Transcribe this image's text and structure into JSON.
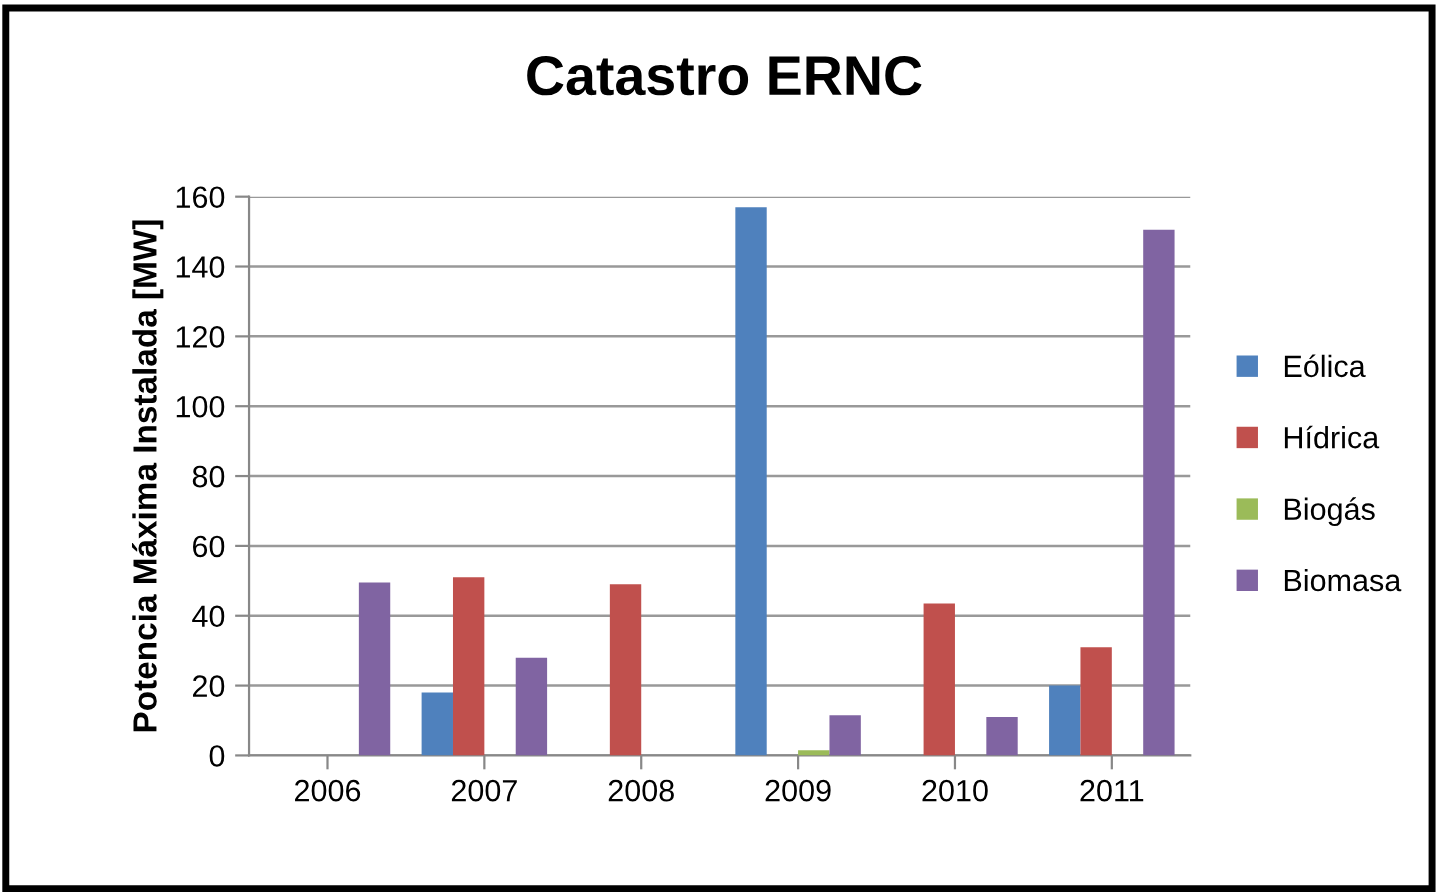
{
  "chart_data": {
    "type": "bar",
    "title": "Catastro ERNC",
    "ylabel": "Potencia Máxima Instalada [MW]",
    "categories": [
      "2006",
      "2007",
      "2008",
      "2009",
      "2010",
      "2011"
    ],
    "series": [
      {
        "name": "Eólica",
        "color": "#4f81bd",
        "values": [
          0,
          18,
          0,
          157,
          0,
          20
        ]
      },
      {
        "name": "Hídrica",
        "color": "#c0504d",
        "values": [
          0,
          51,
          49,
          0,
          43.5,
          31
        ]
      },
      {
        "name": "Biogás",
        "color": "#9bbb59",
        "values": [
          0,
          0,
          0,
          1.5,
          0,
          0
        ]
      },
      {
        "name": "Biomasa",
        "color": "#8064a2",
        "values": [
          49.5,
          28,
          0,
          11.5,
          11,
          150.5
        ]
      }
    ],
    "ylim": [
      0,
      160
    ],
    "yticks": [
      0,
      20,
      40,
      60,
      80,
      100,
      120,
      140,
      160
    ],
    "grid": "y",
    "legend": "right"
  }
}
